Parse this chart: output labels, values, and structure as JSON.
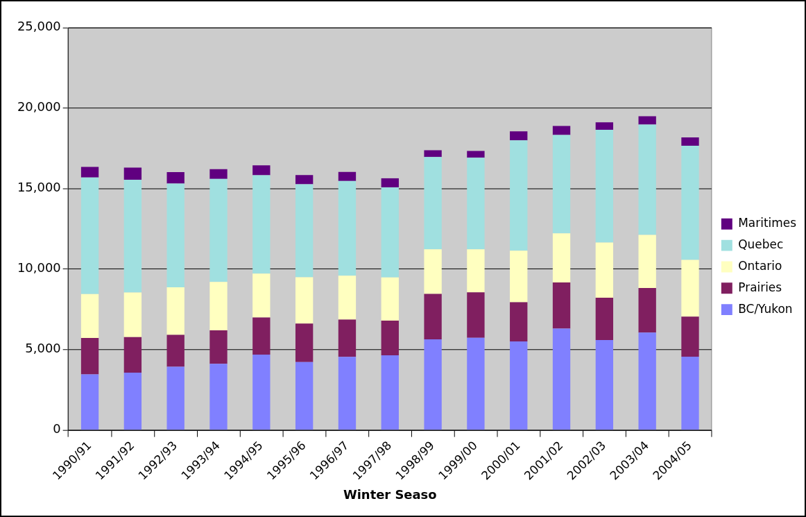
{
  "chart_data": {
    "type": "bar",
    "stacked": true,
    "xlabel": "Winter Seaso",
    "categories": [
      "1990/91",
      "1991/92",
      "1992/93",
      "1993/94",
      "1994/95",
      "1995/96",
      "1996/97",
      "1997/98",
      "1998/99",
      "1999/00",
      "2000/01",
      "2001/02",
      "2002/03",
      "2003/04",
      "2004/05"
    ],
    "series": [
      {
        "name": "BC/Yukon",
        "color": "#8080ff",
        "values": [
          3460,
          3560,
          3930,
          4120,
          4690,
          4220,
          4550,
          4640,
          5640,
          5730,
          5500,
          6300,
          5590,
          6060,
          4560
        ]
      },
      {
        "name": "Prairies",
        "color": "#801f60",
        "values": [
          2260,
          2210,
          1980,
          2070,
          2300,
          2400,
          2310,
          2160,
          2820,
          2820,
          2440,
          2870,
          2630,
          2770,
          2490
        ]
      },
      {
        "name": "Ontario",
        "color": "#ffffc0",
        "values": [
          2730,
          2770,
          2960,
          3010,
          2730,
          2870,
          2730,
          2680,
          2770,
          2680,
          3200,
          3050,
          3430,
          3290,
          3520
        ]
      },
      {
        "name": "Quebec",
        "color": "#a0e0e0",
        "values": [
          7240,
          7010,
          6440,
          6400,
          6110,
          5780,
          5880,
          5600,
          5730,
          5690,
          6860,
          6110,
          7000,
          6860,
          7090
        ]
      },
      {
        "name": "Maritimes",
        "color": "#600080",
        "values": [
          660,
          750,
          710,
          610,
          610,
          570,
          560,
          560,
          420,
          420,
          560,
          560,
          470,
          520,
          520
        ]
      }
    ],
    "ylim": [
      0,
      25000
    ],
    "yticks": [
      {
        "value": 0,
        "label": "0"
      },
      {
        "value": 5000,
        "label": "5,000"
      },
      {
        "value": 10000,
        "label": "10,000"
      },
      {
        "value": 15000,
        "label": "15,000"
      },
      {
        "value": 20000,
        "label": "20,000"
      },
      {
        "value": 25000,
        "label": "25,000"
      }
    ],
    "grid": "y",
    "legend": "right"
  }
}
